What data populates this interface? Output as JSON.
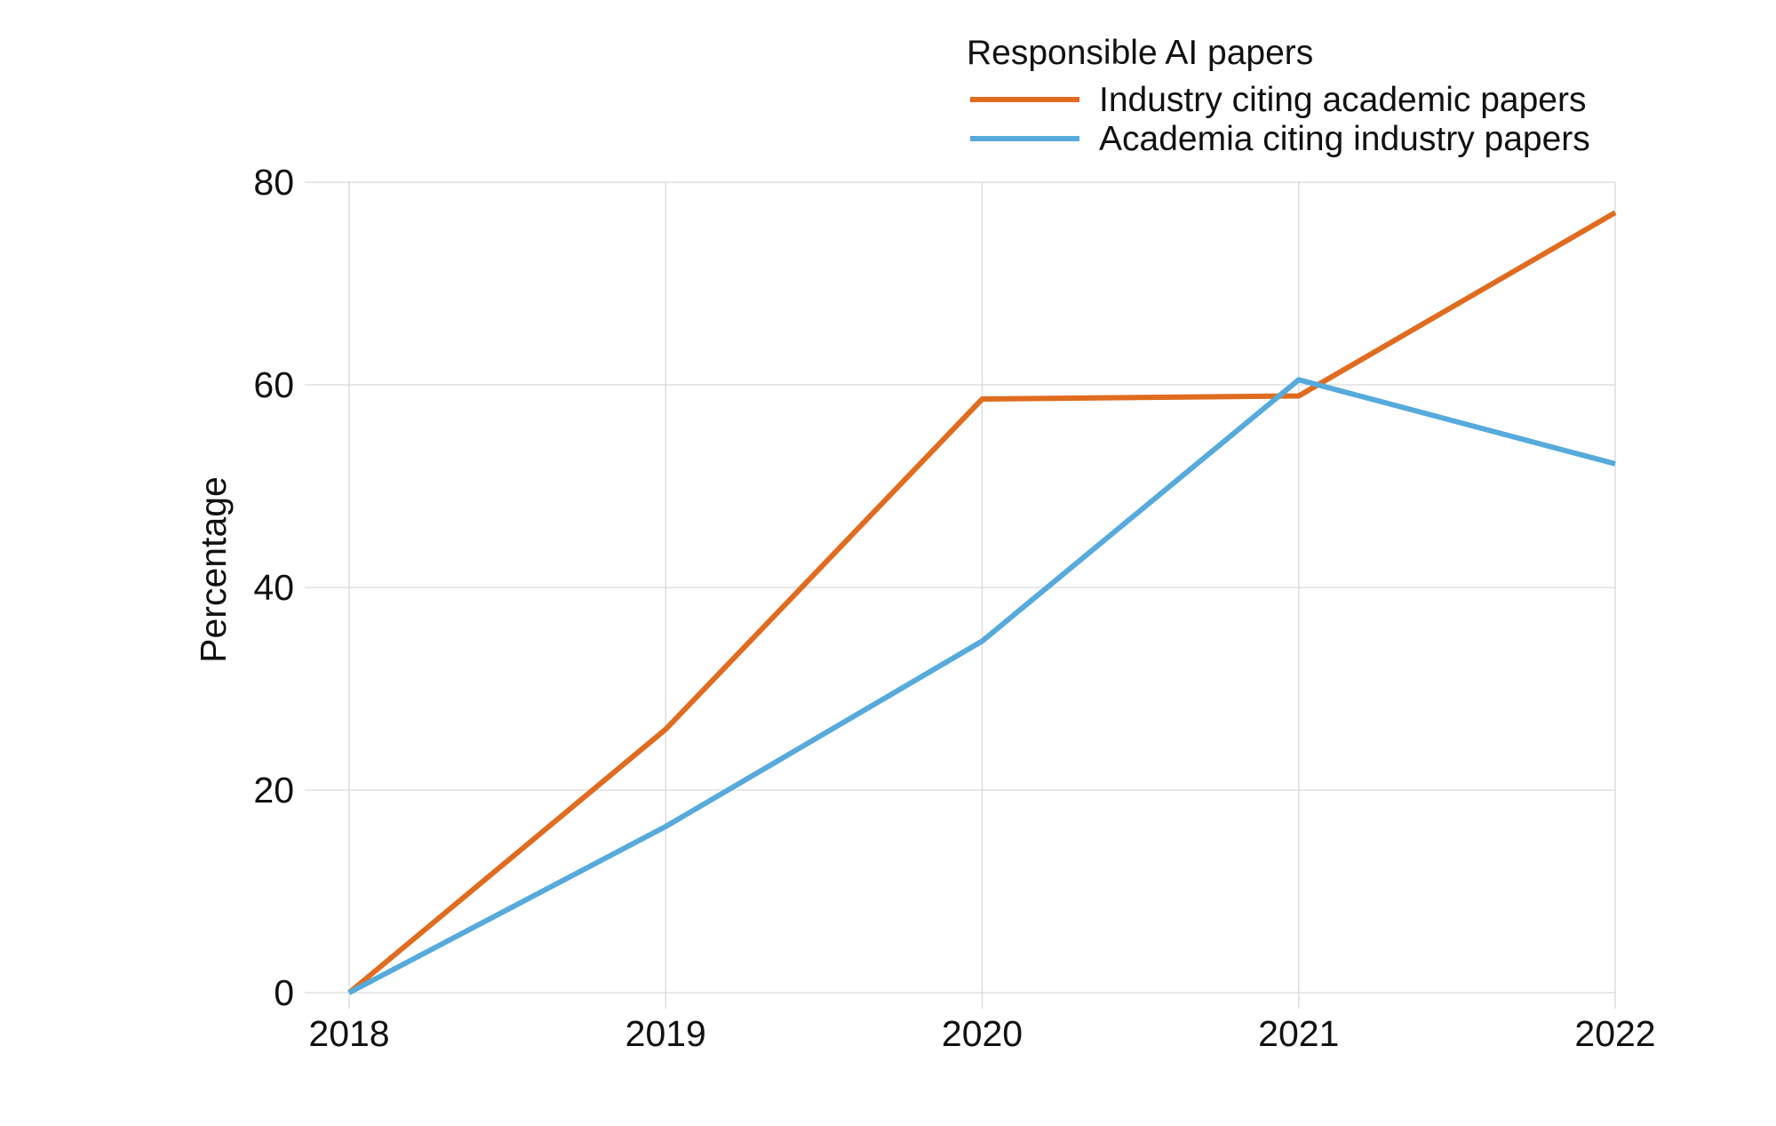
{
  "chart_data": {
    "type": "line",
    "title": "",
    "xlabel": "",
    "ylabel": "Percentage",
    "categories": [
      "2018",
      "2019",
      "2020",
      "2021",
      "2022"
    ],
    "ylim": [
      0,
      80
    ],
    "yticks": [
      0,
      20,
      40,
      60,
      80
    ],
    "grid": true,
    "legend": {
      "title": "Responsible AI papers",
      "placement": "top-right"
    },
    "series": [
      {
        "name": "Industry citing academic papers",
        "color": "#e06c1f",
        "values": [
          0,
          26,
          58.6,
          58.9,
          77
        ]
      },
      {
        "name": "Academia citing industry papers",
        "color": "#56aadc",
        "values": [
          0,
          16.4,
          34.7,
          60.5,
          52.2
        ]
      }
    ]
  }
}
